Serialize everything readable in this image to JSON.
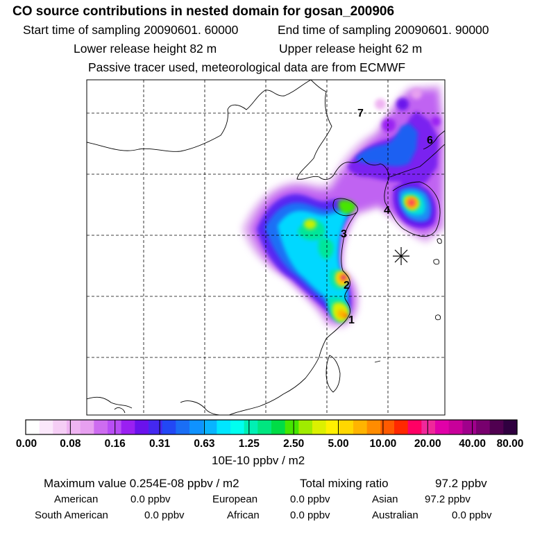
{
  "header": {
    "title": "CO  source contributions in nested domain for gosan_200906",
    "start_label": "Start time of sampling 20090601. 60000",
    "end_label": "End time of sampling 20090601. 90000",
    "lower_label": "Lower release height   82 m",
    "upper_label": "Upper release height   62 m",
    "tracer_note": "Passive tracer used, meteorological data are from ECMWF"
  },
  "map": {
    "region_labels": [
      "1",
      "2",
      "3",
      "4",
      "6",
      "7"
    ],
    "receptor_marker": "station-asterisk"
  },
  "colorbar": {
    "colors": [
      "#ffffff",
      "#fbe8fb",
      "#f5cef5",
      "#efb4f2",
      "#e7a0f0",
      "#cd6cf0",
      "#b84ef5",
      "#9a20f2",
      "#6a12ec",
      "#4428f0",
      "#2248f5",
      "#1a6ef5",
      "#0f92ff",
      "#08b4ff",
      "#00e6ff",
      "#00fff0",
      "#00f0b4",
      "#00e680",
      "#00dc46",
      "#46e600",
      "#a0eb00",
      "#dcf000",
      "#fff000",
      "#ffd700",
      "#ffb400",
      "#ff8c00",
      "#ff5a00",
      "#ff2800",
      "#ff0064",
      "#f0289a",
      "#e100a8",
      "#c8009a",
      "#a0008c",
      "#78006e",
      "#500050",
      "#300040"
    ],
    "tick_labels": [
      "0.00",
      "0.08",
      "0.16",
      "0.31",
      "0.63",
      "1.25",
      "2.50",
      "5.00",
      "10.00",
      "20.00",
      "40.00",
      "80.00"
    ],
    "unit_label": "10E-10 ppbv / m2"
  },
  "summary": {
    "max_label": "Maximum value  0.254E-08 ppbv / m2",
    "total_label": "Total mixing ratio",
    "total_value": "97.2 ppbv",
    "sources": [
      {
        "name": "American",
        "value": "0.0 ppbv"
      },
      {
        "name": "European",
        "value": "0.0 ppbv"
      },
      {
        "name": "Asian",
        "value": "97.2 ppbv"
      },
      {
        "name": "South American",
        "value": "0.0 ppbv"
      },
      {
        "name": "African",
        "value": "0.0 ppbv"
      },
      {
        "name": "Australian",
        "value": "0.0 ppbv"
      }
    ]
  }
}
